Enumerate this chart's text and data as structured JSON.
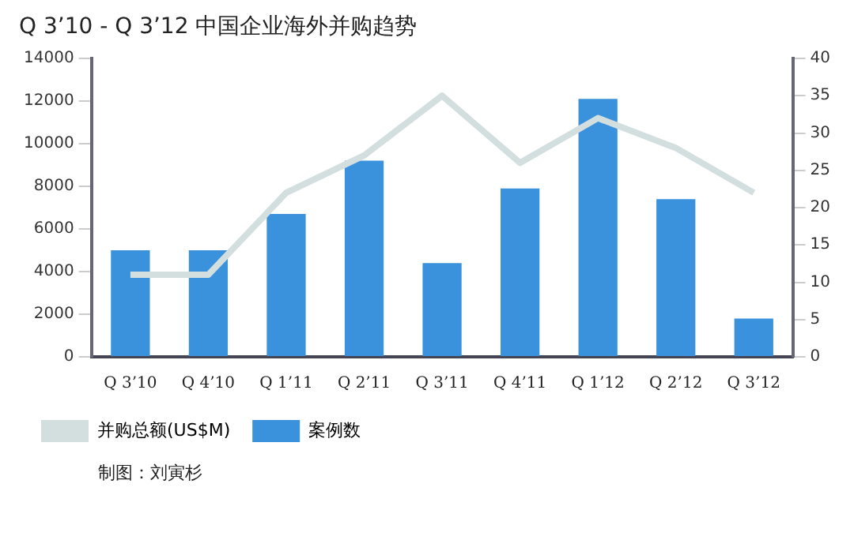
{
  "chart_data": {
    "type": "bar",
    "title": "Q 3’10 - Q 3’12 中国企业海外并购趋势",
    "categories": [
      "Q 3’10",
      "Q 4’10",
      "Q 1’11",
      "Q 2’11",
      "Q 3’11",
      "Q 4’11",
      "Q 1’12",
      "Q 2’12",
      "Q 3’12"
    ],
    "series": [
      {
        "name": "并购总额(US$M)",
        "type": "line",
        "axis": "y2",
        "color": "#d3dede",
        "values": [
          11,
          11,
          22,
          27,
          35,
          26,
          32,
          28,
          22
        ]
      },
      {
        "name": "案例数",
        "color": "#3a92dc",
        "values": [
          5000,
          5000,
          6700,
          9200,
          4400,
          7900,
          12100,
          7400,
          1800
        ]
      }
    ],
    "ylim": [
      0,
      14000
    ],
    "yticks": [
      0,
      2000,
      4000,
      6000,
      8000,
      10000,
      12000,
      14000
    ],
    "y2lim": [
      0,
      40
    ],
    "y2ticks": [
      0,
      5,
      10,
      15,
      20,
      25,
      30,
      35,
      40
    ],
    "grid": false,
    "legend": "bottom",
    "marker": "none",
    "annotations": [
      "制图：刘寅杉"
    ]
  }
}
